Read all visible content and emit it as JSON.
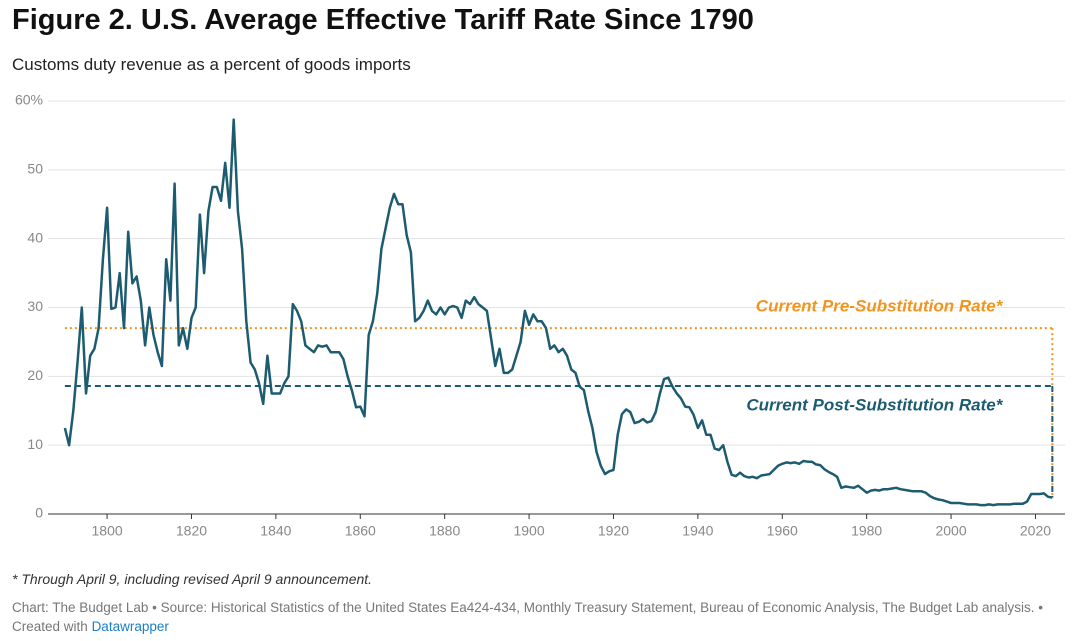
{
  "chart_data": {
    "type": "line",
    "title": "Figure 2. U.S. Average Effective Tariff Rate Since 1790",
    "subtitle": "Customs duty revenue as a percent of goods imports",
    "note": "* Through April 9, including revised April 9 announcement.",
    "source": "Chart: The Budget Lab • Source: Historical Statistics of the United States Ea424-434, Monthly Treasury Statement, Bureau of Economic Analysis, The Budget Lab analysis. • Created with",
    "credit_link": "Datawrapper",
    "xlim": [
      1786,
      2027
    ],
    "ylim": [
      0,
      60
    ],
    "xticks": [
      1800,
      1820,
      1840,
      1860,
      1880,
      1900,
      1920,
      1940,
      1960,
      1980,
      2000,
      2020
    ],
    "yticks": [
      0,
      10,
      20,
      30,
      40,
      50,
      {
        "value": 60,
        "label": "60%"
      }
    ],
    "grid": true,
    "x": [
      1790,
      1791,
      1792,
      1793,
      1794,
      1795,
      1796,
      1797,
      1798,
      1799,
      1800,
      1801,
      1802,
      1803,
      1804,
      1805,
      1806,
      1807,
      1808,
      1809,
      1810,
      1811,
      1812,
      1813,
      1814,
      1815,
      1816,
      1817,
      1818,
      1819,
      1820,
      1821,
      1822,
      1823,
      1824,
      1825,
      1826,
      1827,
      1828,
      1829,
      1830,
      1831,
      1832,
      1833,
      1834,
      1835,
      1836,
      1837,
      1838,
      1839,
      1840,
      1841,
      1842,
      1843,
      1844,
      1845,
      1846,
      1847,
      1848,
      1849,
      1850,
      1851,
      1852,
      1853,
      1854,
      1855,
      1856,
      1857,
      1858,
      1859,
      1860,
      1861,
      1862,
      1863,
      1864,
      1865,
      1866,
      1867,
      1868,
      1869,
      1870,
      1871,
      1872,
      1873,
      1874,
      1875,
      1876,
      1877,
      1878,
      1879,
      1880,
      1881,
      1882,
      1883,
      1884,
      1885,
      1886,
      1887,
      1888,
      1889,
      1890,
      1891,
      1892,
      1893,
      1894,
      1895,
      1896,
      1897,
      1898,
      1899,
      1900,
      1901,
      1902,
      1903,
      1904,
      1905,
      1906,
      1907,
      1908,
      1909,
      1910,
      1911,
      1912,
      1913,
      1914,
      1915,
      1916,
      1917,
      1918,
      1919,
      1920,
      1921,
      1922,
      1923,
      1924,
      1925,
      1926,
      1927,
      1928,
      1929,
      1930,
      1931,
      1932,
      1933,
      1934,
      1935,
      1936,
      1937,
      1938,
      1939,
      1940,
      1941,
      1942,
      1943,
      1944,
      1945,
      1946,
      1947,
      1948,
      1949,
      1950,
      1951,
      1952,
      1953,
      1954,
      1955,
      1956,
      1957,
      1958,
      1959,
      1960,
      1961,
      1962,
      1963,
      1964,
      1965,
      1966,
      1967,
      1968,
      1969,
      1970,
      1971,
      1972,
      1973,
      1974,
      1975,
      1976,
      1977,
      1978,
      1979,
      1980,
      1981,
      1982,
      1983,
      1984,
      1985,
      1986,
      1987,
      1988,
      1989,
      1990,
      1991,
      1992,
      1993,
      1994,
      1995,
      1996,
      1997,
      1998,
      1999,
      2000,
      2001,
      2002,
      2003,
      2004,
      2005,
      2006,
      2007,
      2008,
      2009,
      2010,
      2011,
      2012,
      2013,
      2014,
      2015,
      2016,
      2017,
      2018,
      2019,
      2020,
      2021,
      2022,
      2023,
      2024
    ],
    "series": [
      {
        "color": "#1d5c70",
        "values": [
          12.5,
          10,
          15,
          22,
          30,
          17.5,
          23,
          24,
          27,
          37,
          44.5,
          29.8,
          30,
          35,
          27,
          41,
          33.5,
          34.5,
          31,
          24.5,
          30,
          26,
          23.5,
          21.5,
          37,
          31,
          48,
          24.5,
          27,
          24,
          28.5,
          30,
          43.5,
          35,
          44,
          47.5,
          47.5,
          45.5,
          51,
          44.5,
          57.3,
          44,
          38.5,
          28,
          22,
          21,
          19,
          16,
          23,
          17.5,
          17.5,
          17.5,
          19,
          20,
          30.5,
          29.5,
          28,
          24.5,
          24,
          23.5,
          24.5,
          24.3,
          24.5,
          23.5,
          23.5,
          23.5,
          22.5,
          20,
          18,
          15.5,
          15.6,
          14.2,
          26,
          28,
          32,
          38.5,
          41.5,
          44.5,
          46.5,
          45,
          45,
          40.5,
          38,
          28,
          28.5,
          29.5,
          31,
          29.5,
          29,
          30,
          29,
          30,
          30.2,
          30,
          28.5,
          31,
          30.5,
          31.5,
          30.5,
          30,
          29.5,
          25.5,
          21.5,
          24,
          20.5,
          20.5,
          21,
          23,
          25,
          29.5,
          27.5,
          29,
          28,
          28,
          27,
          24,
          24.5,
          23.5,
          24,
          23,
          21,
          20.5,
          18.5,
          18,
          15,
          12.5,
          9,
          7,
          5.8,
          6.2,
          6.4,
          11.5,
          14.5,
          15.2,
          14.8,
          13.2,
          13.4,
          13.8,
          13.3,
          13.5,
          14.8,
          17.5,
          19.6,
          19.8,
          18.5,
          17.5,
          16.8,
          15.6,
          15.5,
          14.4,
          12.5,
          13.6,
          11.5,
          11.5,
          9.5,
          9.3,
          10,
          7.6,
          5.7,
          5.5,
          6,
          5.5,
          5.3,
          5.4,
          5.2,
          5.6,
          5.7,
          5.8,
          6.4,
          7,
          7.3,
          7.5,
          7.4,
          7.5,
          7.3,
          7.7,
          7.6,
          7.6,
          7.2,
          7.1,
          6.5,
          6.1,
          5.8,
          5.4,
          3.8,
          4,
          3.9,
          3.8,
          4.1,
          3.6,
          3.1,
          3.4,
          3.5,
          3.4,
          3.6,
          3.6,
          3.7,
          3.8,
          3.6,
          3.5,
          3.4,
          3.3,
          3.3,
          3.3,
          3.1,
          2.6,
          2.3,
          2.1,
          2,
          1.8,
          1.6,
          1.6,
          1.6,
          1.5,
          1.4,
          1.4,
          1.4,
          1.3,
          1.3,
          1.4,
          1.3,
          1.4,
          1.4,
          1.4,
          1.4,
          1.5,
          1.5,
          1.5,
          1.8,
          2.9,
          2.9,
          2.9,
          3,
          2.5,
          2.4
        ]
      }
    ],
    "reference_lines": [
      {
        "label": "Current Pre-Substitution Rate*",
        "value": 27,
        "color": "#f0951f",
        "style": "dotted"
      },
      {
        "label": "Current Post-Substitution Rate*",
        "value": 18.6,
        "color": "#1d5c70",
        "style": "dashed"
      }
    ]
  }
}
